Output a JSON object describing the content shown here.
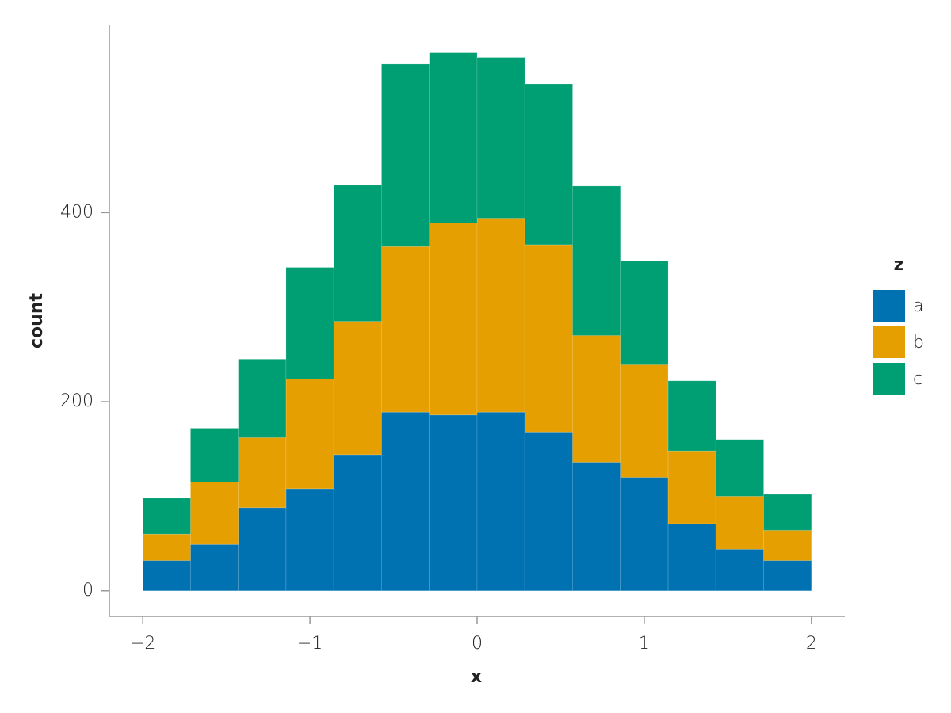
{
  "chart_data": {
    "type": "histogram",
    "stacked": true,
    "x_label": "x",
    "y_label": "count",
    "bins": [
      -2,
      -1.7143,
      -1.4286,
      -1.1429,
      -0.8571,
      -0.5714,
      -0.2857,
      0,
      0.2857,
      0.5714,
      0.8571,
      1.1429,
      1.4286,
      1.7143,
      2
    ],
    "series": [
      {
        "name": "a",
        "color": "#0072b2",
        "values": [
          32,
          49,
          88,
          108,
          144,
          189,
          186,
          189,
          168,
          136,
          120,
          71,
          44,
          32
        ]
      },
      {
        "name": "b",
        "color": "#e69f00",
        "values": [
          28,
          66,
          74,
          116,
          141,
          175,
          203,
          205,
          198,
          134,
          119,
          77,
          56,
          32
        ]
      },
      {
        "name": "c",
        "color": "#009e73",
        "values": [
          38,
          57,
          83,
          118,
          144,
          193,
          180,
          170,
          170,
          158,
          110,
          74,
          60,
          38
        ]
      }
    ],
    "legend_title": "z",
    "legend_position": "right",
    "xlim": [
      -2.2,
      2.2
    ],
    "xticks": [
      {
        "value": -2,
        "label": "−2"
      },
      {
        "value": -1,
        "label": "−1"
      },
      0,
      1,
      2
    ],
    "ylim": [
      -27,
      598
    ],
    "yticks": [
      0,
      200,
      400
    ],
    "grid": false
  }
}
